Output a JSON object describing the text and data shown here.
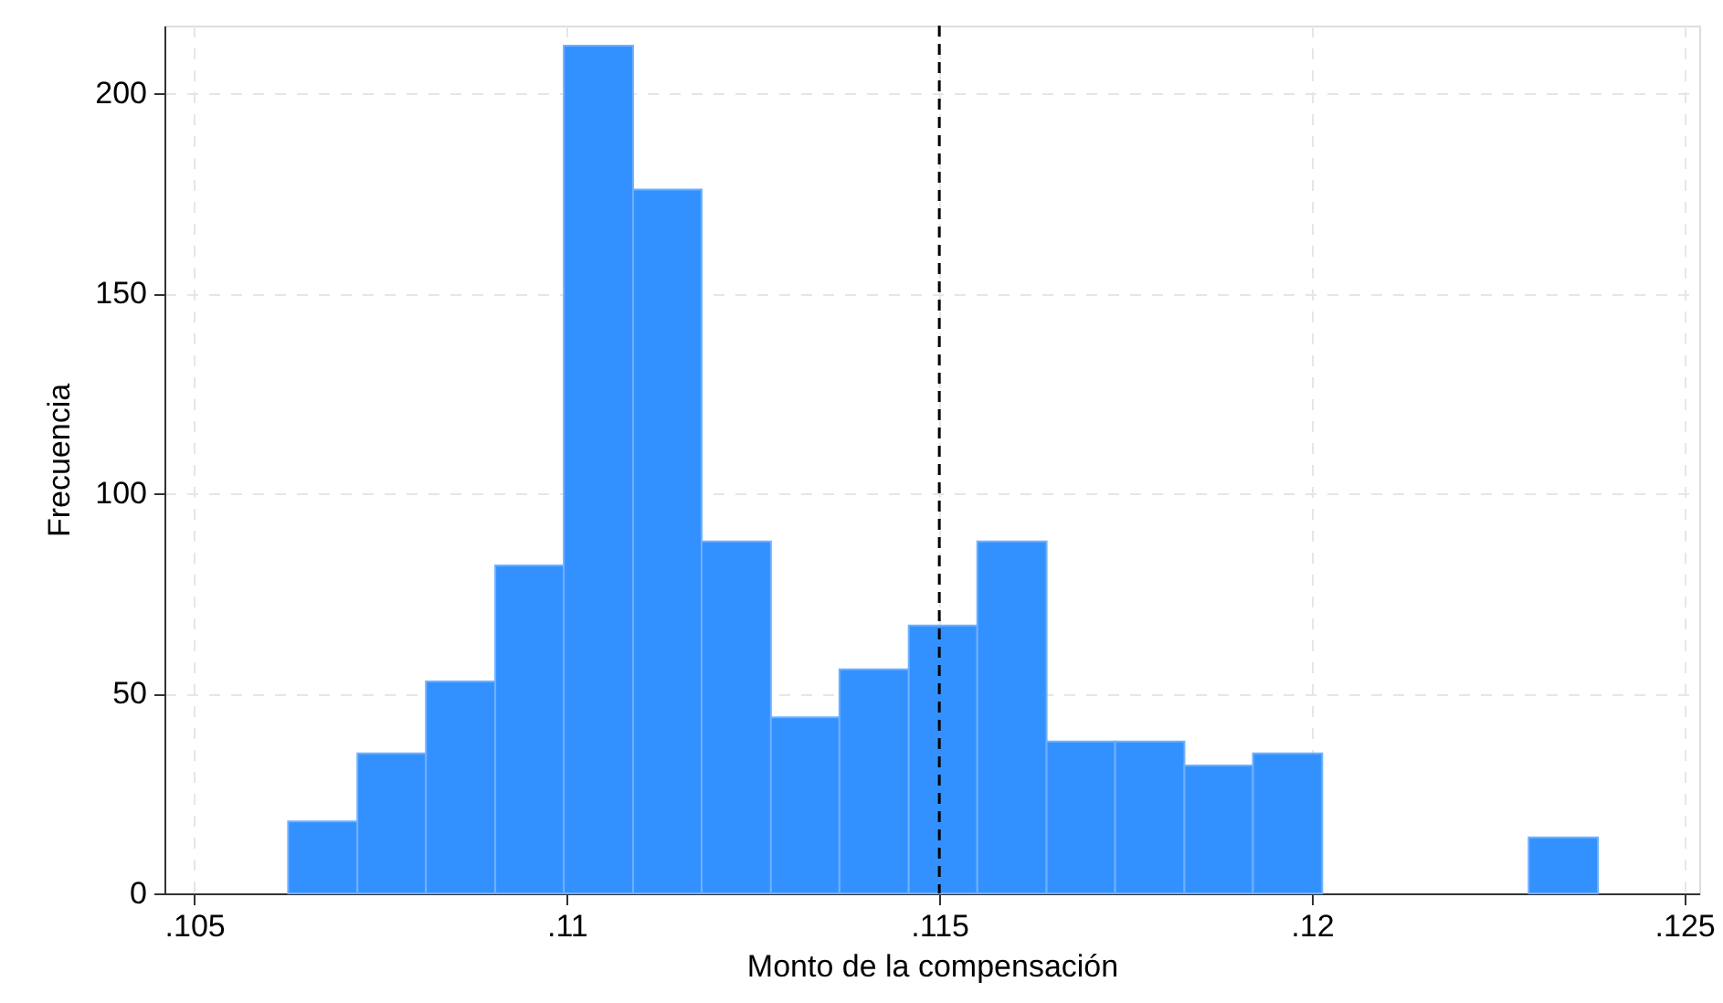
{
  "chart_data": {
    "type": "histogram",
    "xlabel": "Monto de la compensación",
    "ylabel": "Frecuencia",
    "bins": [
      0.10626,
      0.10719,
      0.10811,
      0.10904,
      0.10996,
      0.11089,
      0.11181,
      0.11274,
      0.11366,
      0.11459,
      0.11551,
      0.11644,
      0.11736,
      0.11829,
      0.11921,
      0.12014,
      0.12291,
      0.12384
    ],
    "values": [
      18,
      35,
      53,
      82,
      212,
      176,
      88,
      44,
      56,
      67,
      88,
      38,
      38,
      32,
      35,
      0,
      14
    ],
    "color": "#3391ff",
    "xlim": [
      0.1046,
      0.1252
    ],
    "xticks": [
      {
        "value": 0.105,
        "label": ".105"
      },
      {
        "value": 0.11,
        "label": ".11"
      },
      {
        "value": 0.115,
        "label": ".115"
      },
      {
        "value": 0.12,
        "label": ".12"
      },
      {
        "value": 0.125,
        "label": ".125"
      }
    ],
    "ylim": [
      0,
      217
    ],
    "yticks": [
      0,
      50,
      100,
      150,
      200
    ],
    "grid": true,
    "ref_lines": [
      {
        "axis": "x",
        "value": 0.115,
        "color": "#000000",
        "line_style": "dashed"
      }
    ]
  }
}
